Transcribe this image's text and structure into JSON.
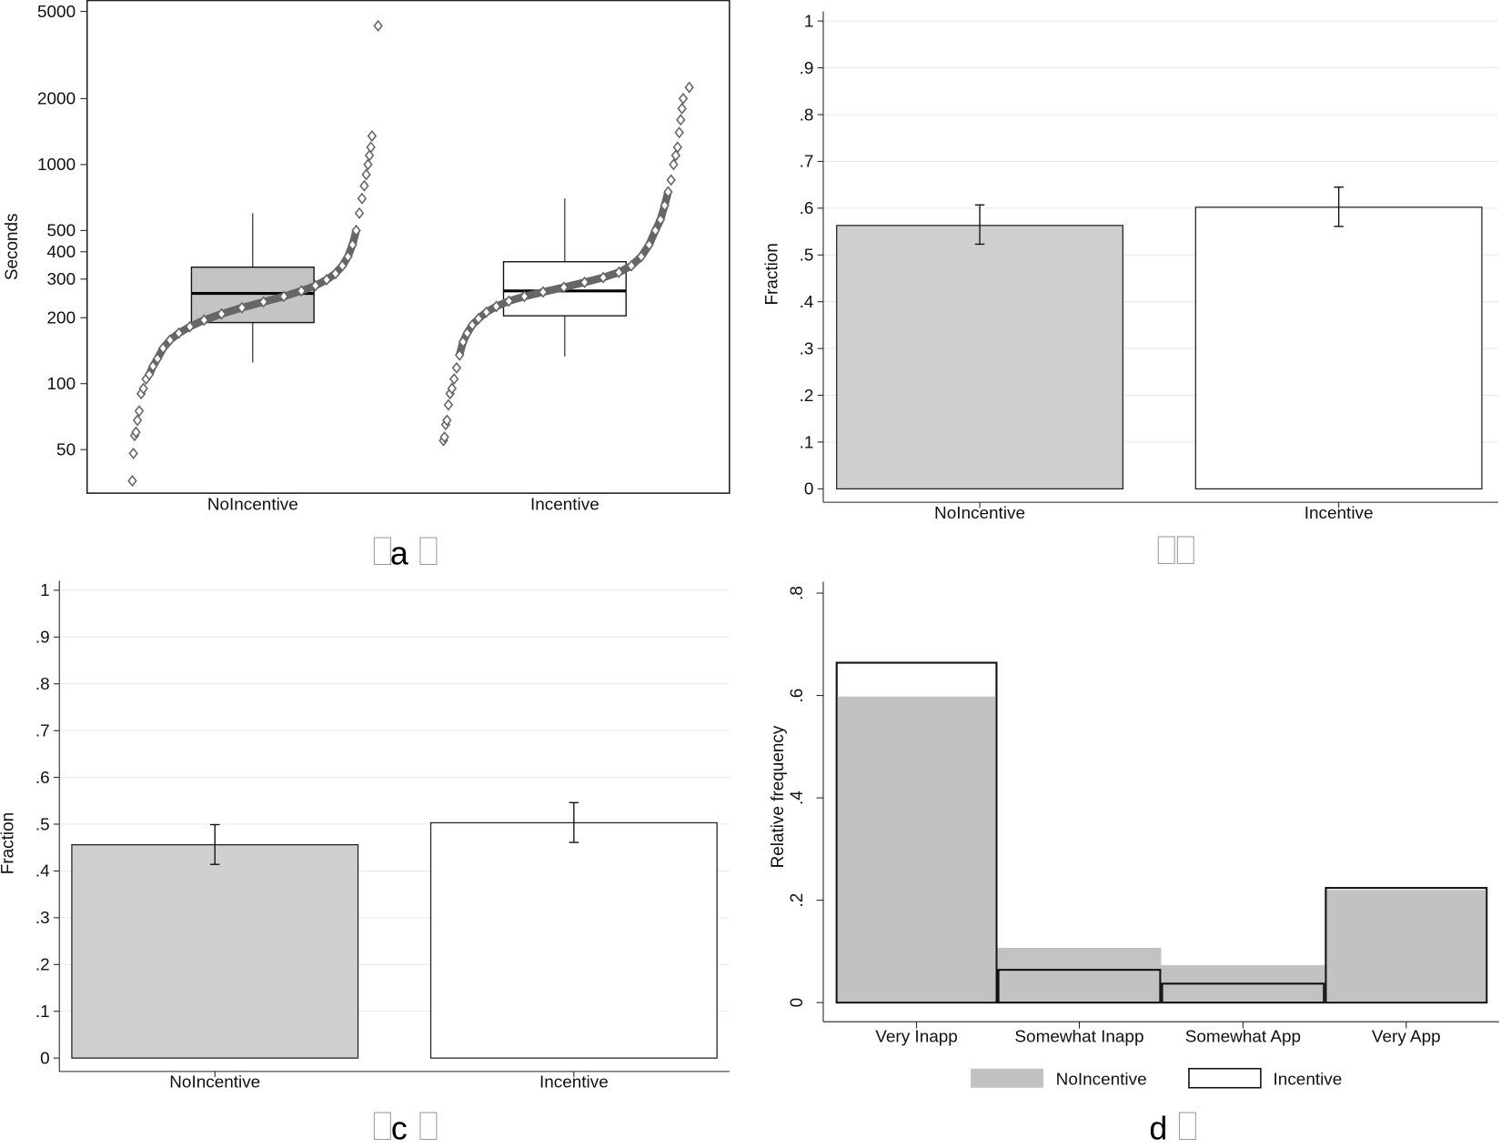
{
  "colors": {
    "nolncentive_fill": "#c4c4c4",
    "incentive_fill": "#ffffff",
    "bar_gray": "#cfcfcf",
    "points": "#666666",
    "grid": "#e6e6e6"
  },
  "chart_data": [
    {
      "panel": "a",
      "caption": "a",
      "type": "box",
      "ylabel": "Seconds",
      "yscale": "log",
      "ylim": [
        28,
        5500
      ],
      "yticks": [
        "5000",
        "2000",
        "1000",
        "500",
        "400",
        "300",
        "200",
        "100",
        "50"
      ],
      "categories": [
        "NoIncentive",
        "Incentive"
      ],
      "boxes": [
        {
          "q1": 190,
          "median": 258,
          "q3": 340,
          "whisker_low": 125,
          "whisker_high": 600,
          "fill": "#c4c4c4"
        },
        {
          "q1": 204,
          "median": 265,
          "q3": 360,
          "whisker_low": 133,
          "whisker_high": 700,
          "fill": "#ffffff"
        }
      ],
      "sorted_points": [
        [
          36,
          48,
          58,
          60,
          68,
          75,
          90,
          95,
          105,
          110,
          120,
          130,
          145,
          158,
          170,
          182,
          195,
          208,
          222,
          236,
          250,
          265,
          280,
          298,
          318,
          345,
          380,
          430,
          500,
          600,
          700,
          800,
          900,
          1000,
          1100,
          1200,
          1350,
          4300
        ],
        [
          55,
          57,
          65,
          68,
          80,
          90,
          95,
          105,
          118,
          135,
          155,
          170,
          185,
          198,
          212,
          225,
          238,
          250,
          262,
          275,
          290,
          305,
          322,
          345,
          380,
          430,
          500,
          560,
          650,
          750,
          850,
          1000,
          1100,
          1200,
          1400,
          1600,
          1800,
          2000,
          2250
        ]
      ]
    },
    {
      "panel": "b",
      "caption": "",
      "type": "bar",
      "ylabel": "Fraction",
      "ylim": [
        0,
        1
      ],
      "yticks": [
        "0",
        ".1",
        ".2",
        ".3",
        ".4",
        ".5",
        ".6",
        ".7",
        ".8",
        ".9",
        "1"
      ],
      "grid": true,
      "categories": [
        "NoIncentive",
        "Incentive"
      ],
      "values": [
        0.563,
        0.602
      ],
      "ci_low": [
        0.523,
        0.561
      ],
      "ci_high": [
        0.607,
        0.645
      ],
      "fills": [
        "#cfcfcf",
        "#ffffff"
      ]
    },
    {
      "panel": "c",
      "caption": "c",
      "type": "bar",
      "ylabel": "Fraction",
      "ylim": [
        0,
        1
      ],
      "yticks": [
        "0",
        ".1",
        ".2",
        ".3",
        ".4",
        ".5",
        ".6",
        ".7",
        ".8",
        ".9",
        "1"
      ],
      "grid": true,
      "categories": [
        "NoIncentive",
        "Incentive"
      ],
      "values": [
        0.456,
        0.503
      ],
      "ci_low": [
        0.414,
        0.461
      ],
      "ci_high": [
        0.499,
        0.546
      ],
      "fills": [
        "#cfcfcf",
        "#ffffff"
      ]
    },
    {
      "panel": "d",
      "caption": "d",
      "type": "bar",
      "ylabel": "Relative frequency",
      "ylim": [
        0,
        0.8
      ],
      "yticks": [
        "0",
        ".2",
        ".4",
        ".6",
        ".8"
      ],
      "categories": [
        "Very Inapp",
        "Somewhat Inapp",
        "Somewhat App",
        "Very App"
      ],
      "series": [
        {
          "name": "NoIncentive",
          "values": [
            0.598,
            0.107,
            0.073,
            0.22
          ]
        },
        {
          "name": "Incentive",
          "values": [
            0.664,
            0.064,
            0.037,
            0.224
          ]
        }
      ],
      "legend": "bottom"
    }
  ]
}
